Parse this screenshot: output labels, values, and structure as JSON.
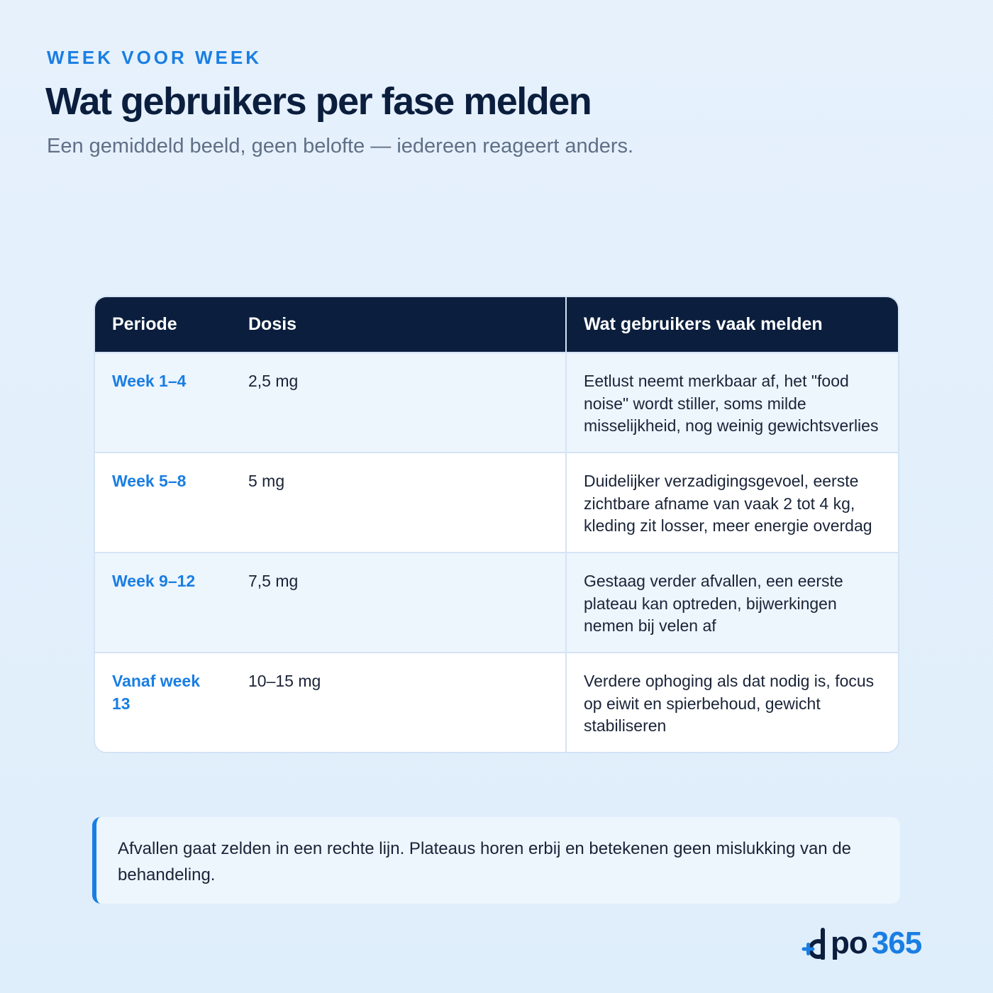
{
  "header": {
    "eyebrow": "WEEK VOOR WEEK",
    "title": "Wat gebruikers per fase melden",
    "subtitle": "Een gemiddeld beeld, geen belofte — iedereen reageert anders."
  },
  "table": {
    "columns": [
      "Periode",
      "Dosis",
      "Wat gebruikers vaak melden"
    ],
    "rows": [
      {
        "period": "Week 1–4",
        "dose": "2,5 mg",
        "report": "Eetlust neemt merkbaar af, het \"food noise\" wordt stiller, soms milde misselijkheid, nog weinig gewichtsverlies"
      },
      {
        "period": "Week 5–8",
        "dose": "5 mg",
        "report": "Duidelijker verzadigingsgevoel, eerste zichtbare afname van vaak 2 tot 4 kg, kleding zit losser, meer energie overdag"
      },
      {
        "period": "Week 9–12",
        "dose": "7,5 mg",
        "report": "Gestaag verder afvallen, een eerste plateau kan optreden, bijwerkingen nemen bij velen af"
      },
      {
        "period": "Vanaf week 13",
        "dose": "10–15 mg",
        "report": "Verdere ophoging als dat nodig is, focus op eiwit en spierbehoud, gewicht stabiliseren"
      }
    ]
  },
  "note": {
    "text": "Afvallen gaat zelden in een rechte lijn. Plateaus horen erbij en betekenen geen mislukking van de behandeling."
  },
  "logo": {
    "text_dark": "po",
    "text_accent": "365",
    "brand_dark": "#0b1e3d",
    "brand_accent": "#1a7ee2"
  }
}
